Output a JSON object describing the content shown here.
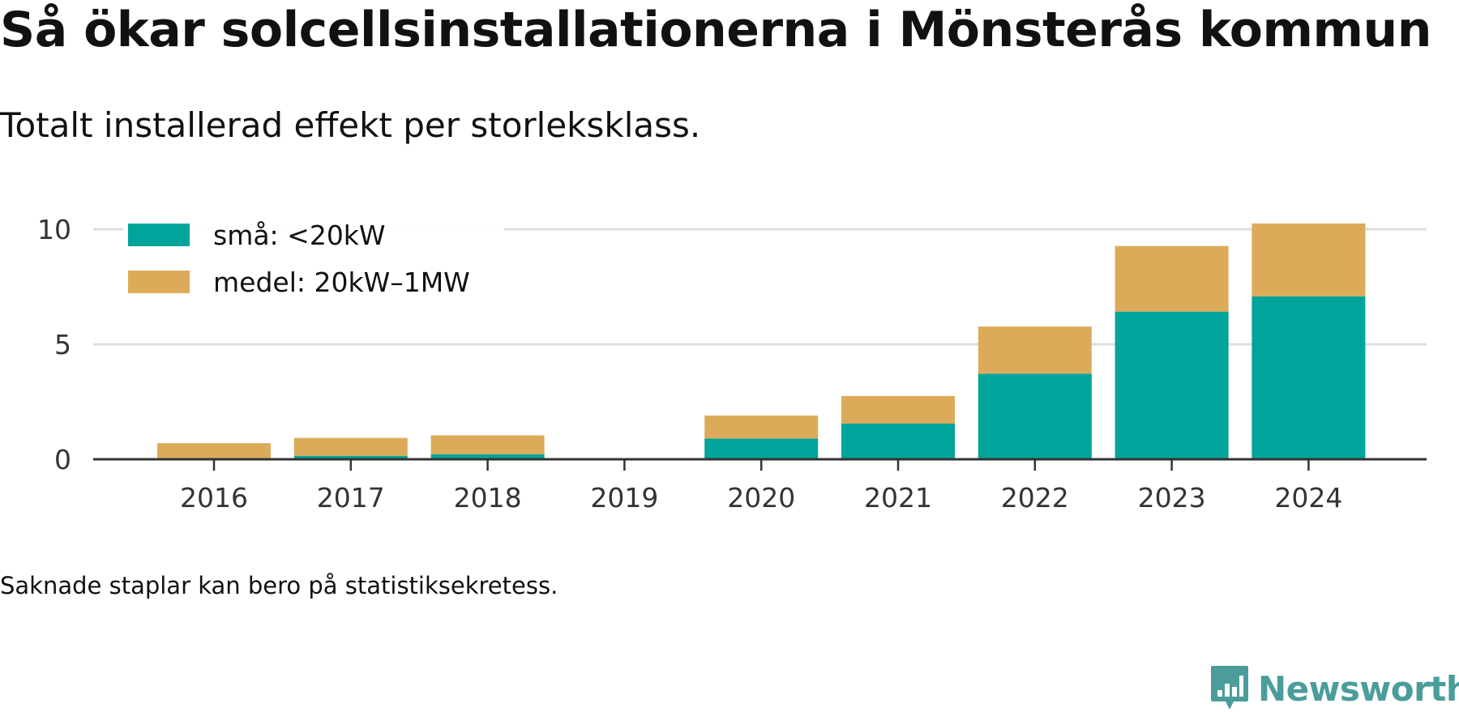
{
  "header": {
    "title": "Så ökar solcellsinstallationerna i Mönsterås kommun",
    "subtitle": "Totalt installerad effekt per storleksklass."
  },
  "footer": {
    "note": "Saknade staplar kan bero på statistiksekretess.",
    "brand": "Newsworthy"
  },
  "colors": {
    "small": "#00a49a",
    "medium": "#dcab59",
    "grid": "#dddddd",
    "axis": "#333333",
    "brand": "#4a9d9a"
  },
  "chart_data": {
    "type": "bar",
    "stacked": true,
    "categories": [
      "2016",
      "2017",
      "2018",
      "2019",
      "2020",
      "2021",
      "2022",
      "2023",
      "2024"
    ],
    "series": [
      {
        "name": "små: <20kW",
        "values": [
          0.05,
          0.15,
          0.22,
          null,
          0.9,
          1.55,
          3.72,
          6.42,
          7.08
        ]
      },
      {
        "name": "medel: 20kW–1MW",
        "values": [
          0.65,
          0.78,
          0.82,
          null,
          1.0,
          1.2,
          2.05,
          2.85,
          3.17
        ]
      }
    ],
    "yticks": [
      0,
      5,
      10
    ],
    "ylim": [
      0,
      10.4
    ],
    "grid": true,
    "legend": "top-left"
  }
}
